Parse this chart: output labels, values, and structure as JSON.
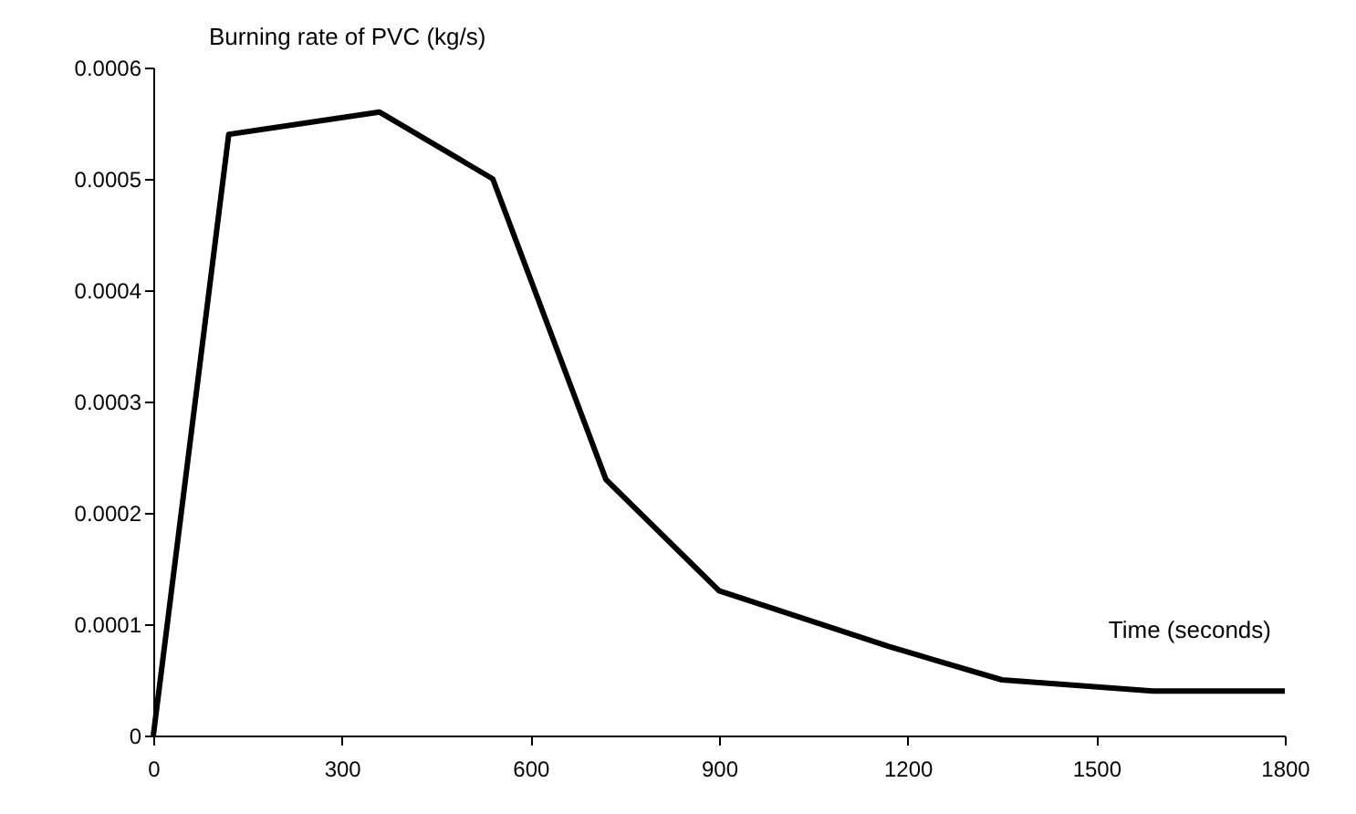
{
  "chart_data": {
    "type": "line",
    "xlabel": "Time (seconds)",
    "ylabel": "Burning rate of PVC (kg/s)",
    "x": [
      0,
      120,
      360,
      540,
      720,
      900,
      1170,
      1350,
      1590,
      1800
    ],
    "series": [
      {
        "color": "#000000",
        "values": [
          0,
          0.00054,
          0.00056,
          0.0005,
          0.00023,
          0.00013,
          8e-05,
          5e-05,
          4e-05,
          4e-05
        ]
      }
    ],
    "xlim": [
      0,
      1800
    ],
    "xticks": [
      0,
      300,
      600,
      900,
      1200,
      1500,
      1800
    ],
    "ylim": [
      0,
      0.0006
    ],
    "yticks": [
      0,
      0.0001,
      0.0002,
      0.0003,
      0.0004,
      0.0005,
      0.0006
    ],
    "grid": false,
    "marker": "none",
    "line_style": "solid"
  }
}
